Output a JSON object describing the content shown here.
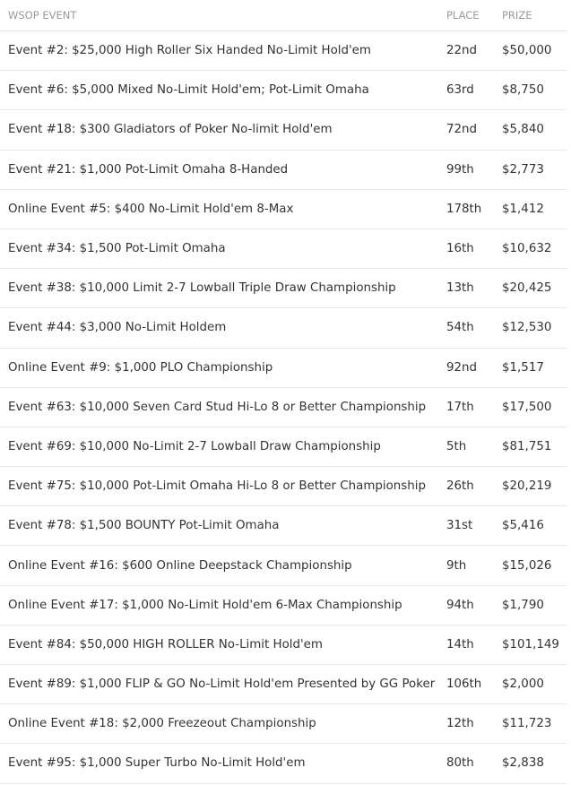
{
  "headers": {
    "event": "WSOP EVENT",
    "place": "PLACE",
    "prize": "PRIZE"
  },
  "rows": [
    {
      "event": "Event #2: $25,000 High Roller Six Handed No-Limit Hold'em",
      "place": "22nd",
      "prize": "$50,000"
    },
    {
      "event": "Event #6: $5,000 Mixed No-Limit Hold'em; Pot-Limit Omaha",
      "place": "63rd",
      "prize": "$8,750"
    },
    {
      "event": "Event #18: $300 Gladiators of Poker No-limit Hold'em",
      "place": "72nd",
      "prize": "$5,840"
    },
    {
      "event": "Event #21: $1,000 Pot-Limit Omaha 8-Handed",
      "place": "99th",
      "prize": "$2,773"
    },
    {
      "event": "Online Event #5: $400 No-Limit Hold'em 8-Max",
      "place": "178th",
      "prize": "$1,412"
    },
    {
      "event": "Event #34: $1,500 Pot-Limit Omaha",
      "place": "16th",
      "prize": "$10,632"
    },
    {
      "event": "Event #38: $10,000 Limit 2-7 Lowball Triple Draw Championship",
      "place": "13th",
      "prize": "$20,425"
    },
    {
      "event": "Event #44: $3,000 No-Limit Holdem",
      "place": "54th",
      "prize": "$12,530"
    },
    {
      "event": "Online Event #9: $1,000 PLO Championship",
      "place": "92nd",
      "prize": "$1,517"
    },
    {
      "event": "Event #63: $10,000 Seven Card Stud Hi-Lo 8 or Better Championship",
      "place": "17th",
      "prize": "$17,500"
    },
    {
      "event": "Event #69: $10,000 No-Limit 2-7 Lowball Draw Championship",
      "place": "5th",
      "prize": "$81,751"
    },
    {
      "event": "Event #75: $10,000 Pot-Limit Omaha Hi-Lo 8 or Better Championship",
      "place": "26th",
      "prize": "$20,219"
    },
    {
      "event": "Event #78: $1,500 BOUNTY Pot-Limit Omaha",
      "place": "31st",
      "prize": "$5,416"
    },
    {
      "event": "Online Event #16: $600 Online Deepstack Championship",
      "place": "9th",
      "prize": "$15,026"
    },
    {
      "event": "Online Event #17: $1,000 No-Limit Hold'em 6-Max Championship",
      "place": "94th",
      "prize": "$1,790"
    },
    {
      "event": "Event #84: $50,000 HIGH ROLLER No-Limit Hold'em",
      "place": "14th",
      "prize": "$101,149"
    },
    {
      "event": "Event #89: $1,000 FLIP & GO No-Limit Hold'em Presented by GG Poker",
      "place": "106th",
      "prize": "$2,000"
    },
    {
      "event": "Online Event #18: $2,000 Freezeout Championship",
      "place": "12th",
      "prize": "$11,723"
    },
    {
      "event": "Event #95: $1,000 Super Turbo No-Limit Hold'em",
      "place": "80th",
      "prize": "$2,838"
    }
  ]
}
